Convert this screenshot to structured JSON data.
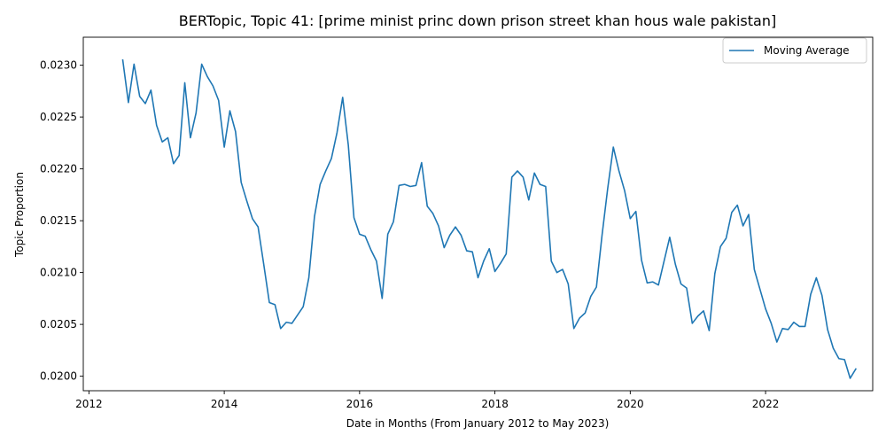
{
  "chart_data": {
    "type": "line",
    "title": "BERTopic, Topic 41: [prime minist princ down prison street khan hous wale pakistan]",
    "xlabel": "Date in Months (From January 2012 to May 2023)",
    "ylabel": "Topic Proportion",
    "xlim": [
      "2011-12",
      "2023-08"
    ],
    "ylim": [
      0.01986,
      0.02327
    ],
    "grid": false,
    "legend_position": "top-right",
    "x_ticks": [
      {
        "value": "2012-01",
        "label": "2012"
      },
      {
        "value": "2014-01",
        "label": "2014"
      },
      {
        "value": "2016-01",
        "label": "2016"
      },
      {
        "value": "2018-01",
        "label": "2018"
      },
      {
        "value": "2020-01",
        "label": "2020"
      },
      {
        "value": "2022-01",
        "label": "2022"
      }
    ],
    "y_ticks": [
      {
        "value": 0.02,
        "label": "0.0200"
      },
      {
        "value": 0.0205,
        "label": "0.0205"
      },
      {
        "value": 0.021,
        "label": "0.0210"
      },
      {
        "value": 0.0215,
        "label": "0.0215"
      },
      {
        "value": 0.022,
        "label": "0.0220"
      },
      {
        "value": 0.0225,
        "label": "0.0225"
      },
      {
        "value": 0.023,
        "label": "0.0230"
      }
    ],
    "series": [
      {
        "name": "Moving Average",
        "color": "#1f77b4",
        "x": [
          "2012-07",
          "2012-08",
          "2012-09",
          "2012-10",
          "2012-11",
          "2012-12",
          "2013-01",
          "2013-02",
          "2013-03",
          "2013-04",
          "2013-05",
          "2013-06",
          "2013-07",
          "2013-08",
          "2013-09",
          "2013-10",
          "2013-11",
          "2013-12",
          "2014-01",
          "2014-02",
          "2014-03",
          "2014-04",
          "2014-05",
          "2014-06",
          "2014-07",
          "2014-08",
          "2014-09",
          "2014-10",
          "2014-11",
          "2014-12",
          "2015-01",
          "2015-02",
          "2015-03",
          "2015-04",
          "2015-05",
          "2015-06",
          "2015-07",
          "2015-08",
          "2015-09",
          "2015-10",
          "2015-11",
          "2015-12",
          "2016-01",
          "2016-02",
          "2016-03",
          "2016-04",
          "2016-05",
          "2016-06",
          "2016-07",
          "2016-08",
          "2016-09",
          "2016-10",
          "2016-11",
          "2016-12",
          "2017-01",
          "2017-02",
          "2017-03",
          "2017-04",
          "2017-05",
          "2017-06",
          "2017-07",
          "2017-08",
          "2017-09",
          "2017-10",
          "2017-11",
          "2017-12",
          "2018-01",
          "2018-02",
          "2018-03",
          "2018-04",
          "2018-05",
          "2018-06",
          "2018-07",
          "2018-08",
          "2018-09",
          "2018-10",
          "2018-11",
          "2018-12",
          "2019-01",
          "2019-02",
          "2019-03",
          "2019-04",
          "2019-05",
          "2019-06",
          "2019-07",
          "2019-08",
          "2019-09",
          "2019-10",
          "2019-11",
          "2019-12",
          "2020-01",
          "2020-02",
          "2020-03",
          "2020-04",
          "2020-05",
          "2020-06",
          "2020-07",
          "2020-08",
          "2020-09",
          "2020-10",
          "2020-11",
          "2020-12",
          "2021-01",
          "2021-02",
          "2021-03",
          "2021-04",
          "2021-05",
          "2021-06",
          "2021-07",
          "2021-08",
          "2021-09",
          "2021-10",
          "2021-11",
          "2021-12",
          "2022-01",
          "2022-02",
          "2022-03",
          "2022-04",
          "2022-05",
          "2022-06",
          "2022-07",
          "2022-08",
          "2022-09",
          "2022-10",
          "2022-11",
          "2022-12",
          "2023-01",
          "2023-02",
          "2023-03",
          "2023-04",
          "2023-05"
        ],
        "values": [
          0.02305,
          0.02264,
          0.02301,
          0.0227,
          0.02263,
          0.02276,
          0.02242,
          0.02226,
          0.0223,
          0.02205,
          0.02213,
          0.02283,
          0.0223,
          0.02254,
          0.02301,
          0.02289,
          0.0228,
          0.02266,
          0.02221,
          0.02256,
          0.02236,
          0.02187,
          0.02169,
          0.02152,
          0.02144,
          0.02108,
          0.02071,
          0.02069,
          0.02046,
          0.02052,
          0.02051,
          0.02059,
          0.02067,
          0.02095,
          0.02154,
          0.02185,
          0.02198,
          0.0221,
          0.02235,
          0.02269,
          0.02223,
          0.02153,
          0.02137,
          0.02135,
          0.02122,
          0.02111,
          0.02075,
          0.02137,
          0.02149,
          0.02184,
          0.02185,
          0.02183,
          0.02184,
          0.02206,
          0.02164,
          0.02157,
          0.02145,
          0.02124,
          0.02136,
          0.02144,
          0.02136,
          0.02121,
          0.0212,
          0.02095,
          0.02111,
          0.02123,
          0.02101,
          0.02109,
          0.02118,
          0.02192,
          0.02198,
          0.02192,
          0.0217,
          0.02196,
          0.02185,
          0.02183,
          0.02111,
          0.021,
          0.02103,
          0.02089,
          0.02046,
          0.02056,
          0.02061,
          0.02077,
          0.02086,
          0.02136,
          0.02181,
          0.02221,
          0.02198,
          0.02179,
          0.02152,
          0.02159,
          0.02112,
          0.0209,
          0.02091,
          0.02088,
          0.02111,
          0.02134,
          0.02108,
          0.02089,
          0.02085,
          0.02051,
          0.02058,
          0.02063,
          0.02044,
          0.02099,
          0.02125,
          0.02133,
          0.02158,
          0.02165,
          0.02145,
          0.02156,
          0.02103,
          0.02084,
          0.02065,
          0.02051,
          0.02033,
          0.02046,
          0.02045,
          0.02052,
          0.02048,
          0.02048,
          0.02079,
          0.02095,
          0.02078,
          0.02045,
          0.02027,
          0.02017,
          0.02016,
          0.01998,
          0.02007
        ]
      }
    ]
  }
}
